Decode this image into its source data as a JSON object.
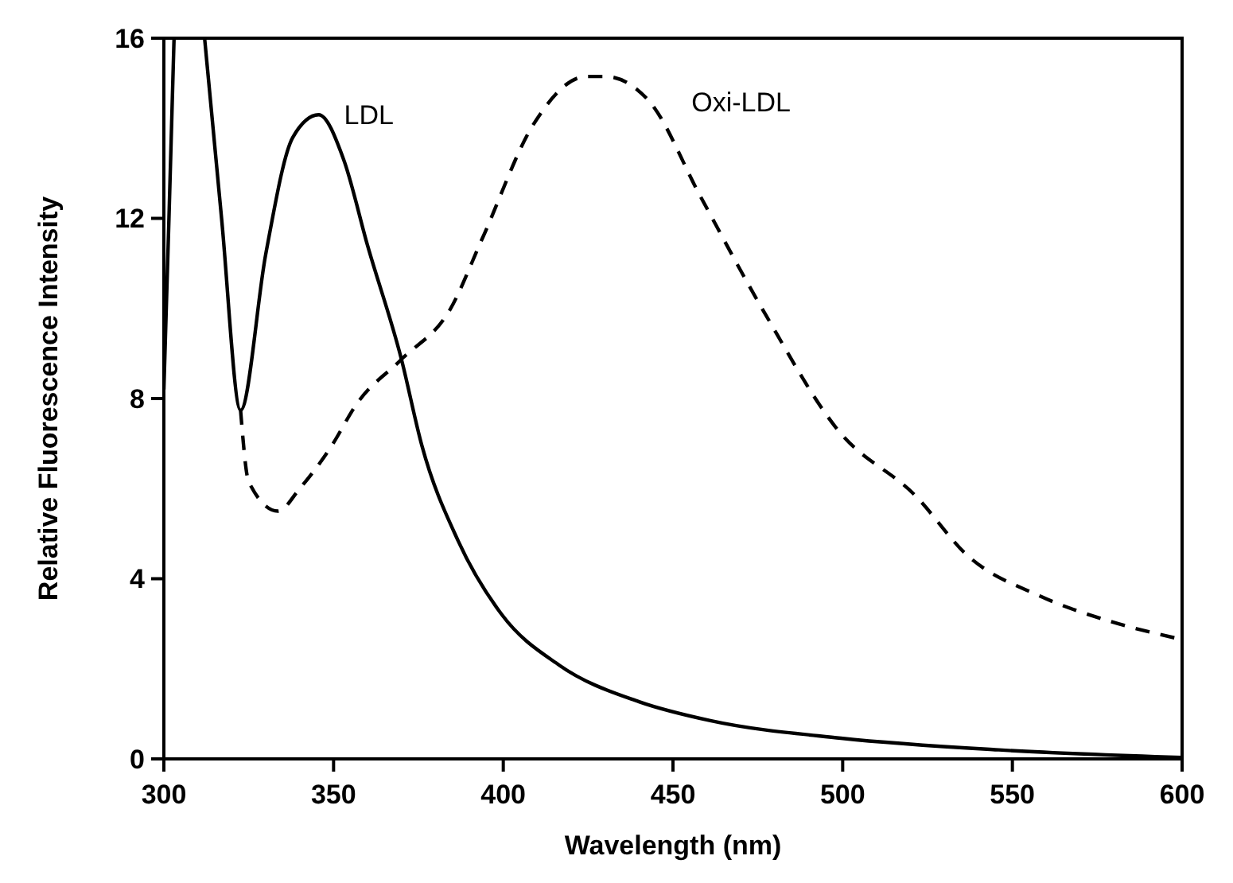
{
  "chart_data": {
    "type": "line",
    "xlabel": "Wavelength (nm)",
    "ylabel": "Relative Fluorescence Intensity",
    "xlim": [
      300,
      600
    ],
    "ylim": [
      0,
      16
    ],
    "xticks": [
      300,
      350,
      400,
      450,
      500,
      550,
      600
    ],
    "yticks": [
      0,
      4,
      8,
      12,
      16
    ],
    "grid": false,
    "marker": "none",
    "x": [
      300,
      301.5,
      303,
      307,
      312,
      317,
      322.6,
      330,
      338,
      345.6,
      353,
      360,
      370,
      376,
      386.7,
      399.6,
      416.5,
      440,
      461,
      499.5,
      546,
      600
    ],
    "series": [
      {
        "name": "LDL",
        "color": "#000000",
        "line_style": "solid",
        "values": [
          8.2,
          12,
          16,
          null,
          16,
          12,
          7.74,
          11.2,
          13.8,
          14.3,
          13.3,
          11.4,
          8.87,
          6.96,
          4.84,
          3.2,
          2.08,
          1.27,
          0.85,
          0.46,
          0.2,
          0.03
        ]
      },
      {
        "name": "Oxi-LDL",
        "color": "#000000",
        "line_style": "dashed",
        "x": [
          322.6,
          325,
          333.6,
          340,
          349,
          357,
          370,
          384.5,
          393.8,
          409,
          424.5,
          430,
          443,
          458,
          477,
          498.6,
          521.6,
          536.7,
          558,
          579,
          600
        ],
        "values": [
          7.74,
          6.15,
          5.5,
          6.0,
          6.9,
          7.9,
          8.87,
          10.0,
          11.55,
          14.1,
          15.15,
          15.15,
          14.6,
          12.5,
          9.9,
          7.3,
          5.83,
          4.52,
          3.62,
          3.05,
          2.65
        ]
      }
    ]
  }
}
